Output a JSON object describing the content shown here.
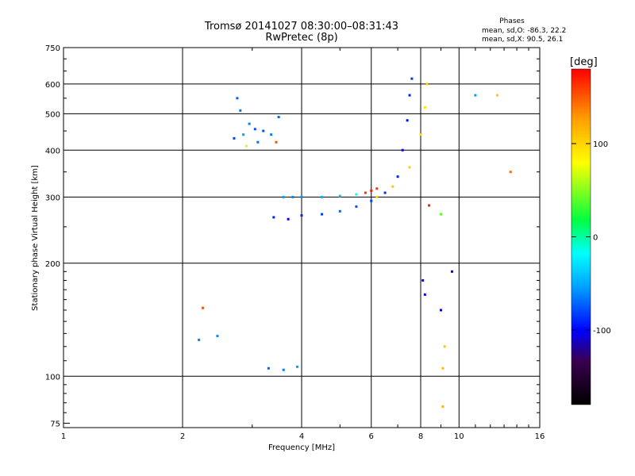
{
  "header": {
    "title_line1": "Tromsø 20141027 08:30:00–08:31:43",
    "title_line2": "RwPretec (8p)",
    "phases_title": "Phases",
    "phases_o": "mean, sd,O: -86.3, 22.2",
    "phases_x": "mean, sd,X:  90.5, 26.1"
  },
  "chart_data": {
    "type": "scatter",
    "title": "Tromsø 20141027 08:30:00–08:31:43",
    "subtitle": "RwPretec (8p)",
    "xlabel": "Frequency [MHz]",
    "ylabel": "Stationary phase Virtual Height [km]",
    "xscale": "log",
    "yscale": "log",
    "xlim": [
      1,
      16
    ],
    "ylim": [
      73,
      750
    ],
    "xticks": [
      1,
      2,
      4,
      6,
      8,
      10,
      16
    ],
    "xtick_labels": [
      "1",
      "2",
      "4",
      "6",
      "8",
      "10",
      "16"
    ],
    "yticks": [
      75,
      100,
      200,
      300,
      400,
      500,
      600,
      750
    ],
    "ytick_labels": [
      "75",
      "100",
      "200",
      "300",
      "400",
      "500",
      "600",
      "750"
    ],
    "grid": true,
    "colorbar": {
      "label": "[deg]",
      "ticks": [
        -100,
        0,
        100
      ],
      "tick_labels": [
        "-100",
        "0",
        "100"
      ],
      "range": [
        -180,
        180
      ],
      "colors": [
        "#000000",
        "#3a0050",
        "#0000ff",
        "#00a0ff",
        "#00ffff",
        "#00ff40",
        "#ffff00",
        "#ffa000",
        "#ff0000"
      ]
    },
    "series": [
      {
        "values": [
          {
            "x": 2.75,
            "y": 550,
            "deg": -80
          },
          {
            "x": 2.8,
            "y": 510,
            "deg": -75
          },
          {
            "x": 2.95,
            "y": 470,
            "deg": -70
          },
          {
            "x": 3.05,
            "y": 455,
            "deg": -85
          },
          {
            "x": 2.7,
            "y": 430,
            "deg": -90
          },
          {
            "x": 2.85,
            "y": 440,
            "deg": -60
          },
          {
            "x": 3.2,
            "y": 450,
            "deg": -85
          },
          {
            "x": 3.35,
            "y": 440,
            "deg": -70
          },
          {
            "x": 3.5,
            "y": 490,
            "deg": -80
          },
          {
            "x": 3.1,
            "y": 420,
            "deg": -75
          },
          {
            "x": 2.9,
            "y": 410,
            "deg": 60
          },
          {
            "x": 3.45,
            "y": 420,
            "deg": 150
          },
          {
            "x": 3.6,
            "y": 300,
            "deg": -60
          },
          {
            "x": 3.8,
            "y": 300,
            "deg": -70
          },
          {
            "x": 4.0,
            "y": 300,
            "deg": -65
          },
          {
            "x": 4.5,
            "y": 300,
            "deg": -55
          },
          {
            "x": 5.0,
            "y": 302,
            "deg": -50
          },
          {
            "x": 5.5,
            "y": 305,
            "deg": -30
          },
          {
            "x": 5.8,
            "y": 308,
            "deg": 160
          },
          {
            "x": 6.0,
            "y": 312,
            "deg": 170
          },
          {
            "x": 6.2,
            "y": 316,
            "deg": 160
          },
          {
            "x": 4.0,
            "y": 268,
            "deg": -100
          },
          {
            "x": 4.5,
            "y": 270,
            "deg": -90
          },
          {
            "x": 5.0,
            "y": 275,
            "deg": -80
          },
          {
            "x": 5.5,
            "y": 283,
            "deg": -85
          },
          {
            "x": 6.0,
            "y": 293,
            "deg": -90
          },
          {
            "x": 6.5,
            "y": 308,
            "deg": -95
          },
          {
            "x": 7.0,
            "y": 340,
            "deg": -100
          },
          {
            "x": 7.2,
            "y": 400,
            "deg": -110
          },
          {
            "x": 7.4,
            "y": 480,
            "deg": -105
          },
          {
            "x": 7.5,
            "y": 560,
            "deg": -100
          },
          {
            "x": 7.6,
            "y": 620,
            "deg": -95
          },
          {
            "x": 6.2,
            "y": 300,
            "deg": 90
          },
          {
            "x": 6.8,
            "y": 320,
            "deg": 100
          },
          {
            "x": 7.5,
            "y": 360,
            "deg": 95
          },
          {
            "x": 8.0,
            "y": 440,
            "deg": 90
          },
          {
            "x": 8.2,
            "y": 520,
            "deg": 85
          },
          {
            "x": 8.3,
            "y": 600,
            "deg": 95
          },
          {
            "x": 3.4,
            "y": 265,
            "deg": -100
          },
          {
            "x": 3.7,
            "y": 262,
            "deg": -110
          },
          {
            "x": 3.3,
            "y": 105,
            "deg": -80
          },
          {
            "x": 3.6,
            "y": 104,
            "deg": -70
          },
          {
            "x": 3.9,
            "y": 106,
            "deg": -60
          },
          {
            "x": 2.2,
            "y": 125,
            "deg": -70
          },
          {
            "x": 2.45,
            "y": 128,
            "deg": -65
          },
          {
            "x": 2.25,
            "y": 152,
            "deg": 150
          },
          {
            "x": 8.1,
            "y": 180,
            "deg": -110
          },
          {
            "x": 8.2,
            "y": 165,
            "deg": -110
          },
          {
            "x": 9.0,
            "y": 150,
            "deg": -110
          },
          {
            "x": 9.2,
            "y": 120,
            "deg": 100
          },
          {
            "x": 9.1,
            "y": 105,
            "deg": 105
          },
          {
            "x": 9.1,
            "y": 83,
            "deg": 110
          },
          {
            "x": 9.0,
            "y": 270,
            "deg": 30
          },
          {
            "x": 8.4,
            "y": 285,
            "deg": 170
          },
          {
            "x": 9.6,
            "y": 190,
            "deg": -130
          },
          {
            "x": 13.5,
            "y": 350,
            "deg": 140
          },
          {
            "x": 12.5,
            "y": 560,
            "deg": 100
          },
          {
            "x": 11.0,
            "y": 560,
            "deg": -60
          }
        ]
      }
    ]
  }
}
